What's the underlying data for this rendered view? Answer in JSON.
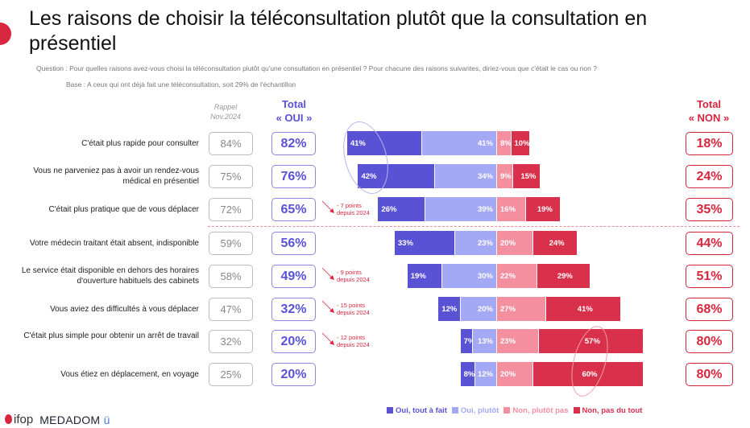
{
  "title": "Les raisons de choisir la téléconsultation plutôt que la consultation en présentiel",
  "question": "Question : Pour quelles raisons avez-vous choisi la téléconsultation plutôt qu'une consultation en présentiel ? Pour chacune des raisons suivantes, diriez-vous que c'était le cas ou non ?",
  "base": "Base : A ceux qui ont déjà fait une téléconsultation, soit 29% de l'échantillon",
  "headers": {
    "rappel_line1": "Rappel",
    "rappel_line2": "Nov.2024",
    "total_oui_line1": "Total",
    "total_oui_line2": "« OUI »",
    "total_non_line1": "Total",
    "total_non_line2": "« NON »"
  },
  "colors": {
    "oui_tout": "#5a52d5",
    "oui_plutot": "#a3a9f5",
    "non_plutot": "#f48fa0",
    "non_pas": "#d9304b"
  },
  "chart_data": {
    "type": "bar",
    "stacked": true,
    "orientation": "horizontal",
    "diverging": true,
    "legend_position": "bottom-right",
    "series": [
      {
        "name": "Oui, tout à fait"
      },
      {
        "name": "Oui, plutôt"
      },
      {
        "name": "Non, plutôt pas"
      },
      {
        "name": "Non, pas du tout"
      }
    ],
    "rows": [
      {
        "label": "C'était plus rapide pour consulter",
        "rappel": "84%",
        "total_oui": "82%",
        "total_non": "18%",
        "values": [
          41,
          41,
          8,
          10
        ],
        "note": ""
      },
      {
        "label": "Vous ne parveniez pas à avoir un rendez-vous médical en présentiel",
        "rappel": "75%",
        "total_oui": "76%",
        "total_non": "24%",
        "values": [
          42,
          34,
          9,
          15
        ],
        "note": ""
      },
      {
        "label": "C'était plus pratique que de vous déplacer",
        "rappel": "72%",
        "total_oui": "65%",
        "total_non": "35%",
        "values": [
          26,
          39,
          16,
          19
        ],
        "note_line1": "- 7 points",
        "note_line2": "depuis 2024"
      },
      {
        "label": "Votre médecin traitant était absent, indisponible",
        "rappel": "59%",
        "total_oui": "56%",
        "total_non": "44%",
        "values": [
          33,
          23,
          20,
          24
        ],
        "note": ""
      },
      {
        "label": "Le service était disponible en dehors des horaires d'ouverture habituels des cabinets",
        "rappel": "58%",
        "total_oui": "49%",
        "total_non": "51%",
        "values": [
          19,
          30,
          22,
          29
        ],
        "note_line1": "- 9 points",
        "note_line2": "depuis 2024"
      },
      {
        "label": "Vous aviez des difficultés à vous déplacer",
        "rappel": "47%",
        "total_oui": "32%",
        "total_non": "68%",
        "values": [
          12,
          20,
          27,
          41
        ],
        "note_line1": "- 15 points",
        "note_line2": "depuis 2024"
      },
      {
        "label": "C'était plus simple pour obtenir un arrêt de travail",
        "rappel": "32%",
        "total_oui": "20%",
        "total_non": "80%",
        "values": [
          7,
          13,
          23,
          57
        ],
        "note_line1": "- 12 points",
        "note_line2": "depuis 2024"
      },
      {
        "label": "Vous étiez en déplacement, en voyage",
        "rappel": "25%",
        "total_oui": "20%",
        "total_non": "80%",
        "values": [
          8,
          12,
          20,
          60
        ],
        "note": ""
      }
    ]
  },
  "logos": {
    "ifop": "ifop",
    "medadom": "MEDADOM"
  }
}
